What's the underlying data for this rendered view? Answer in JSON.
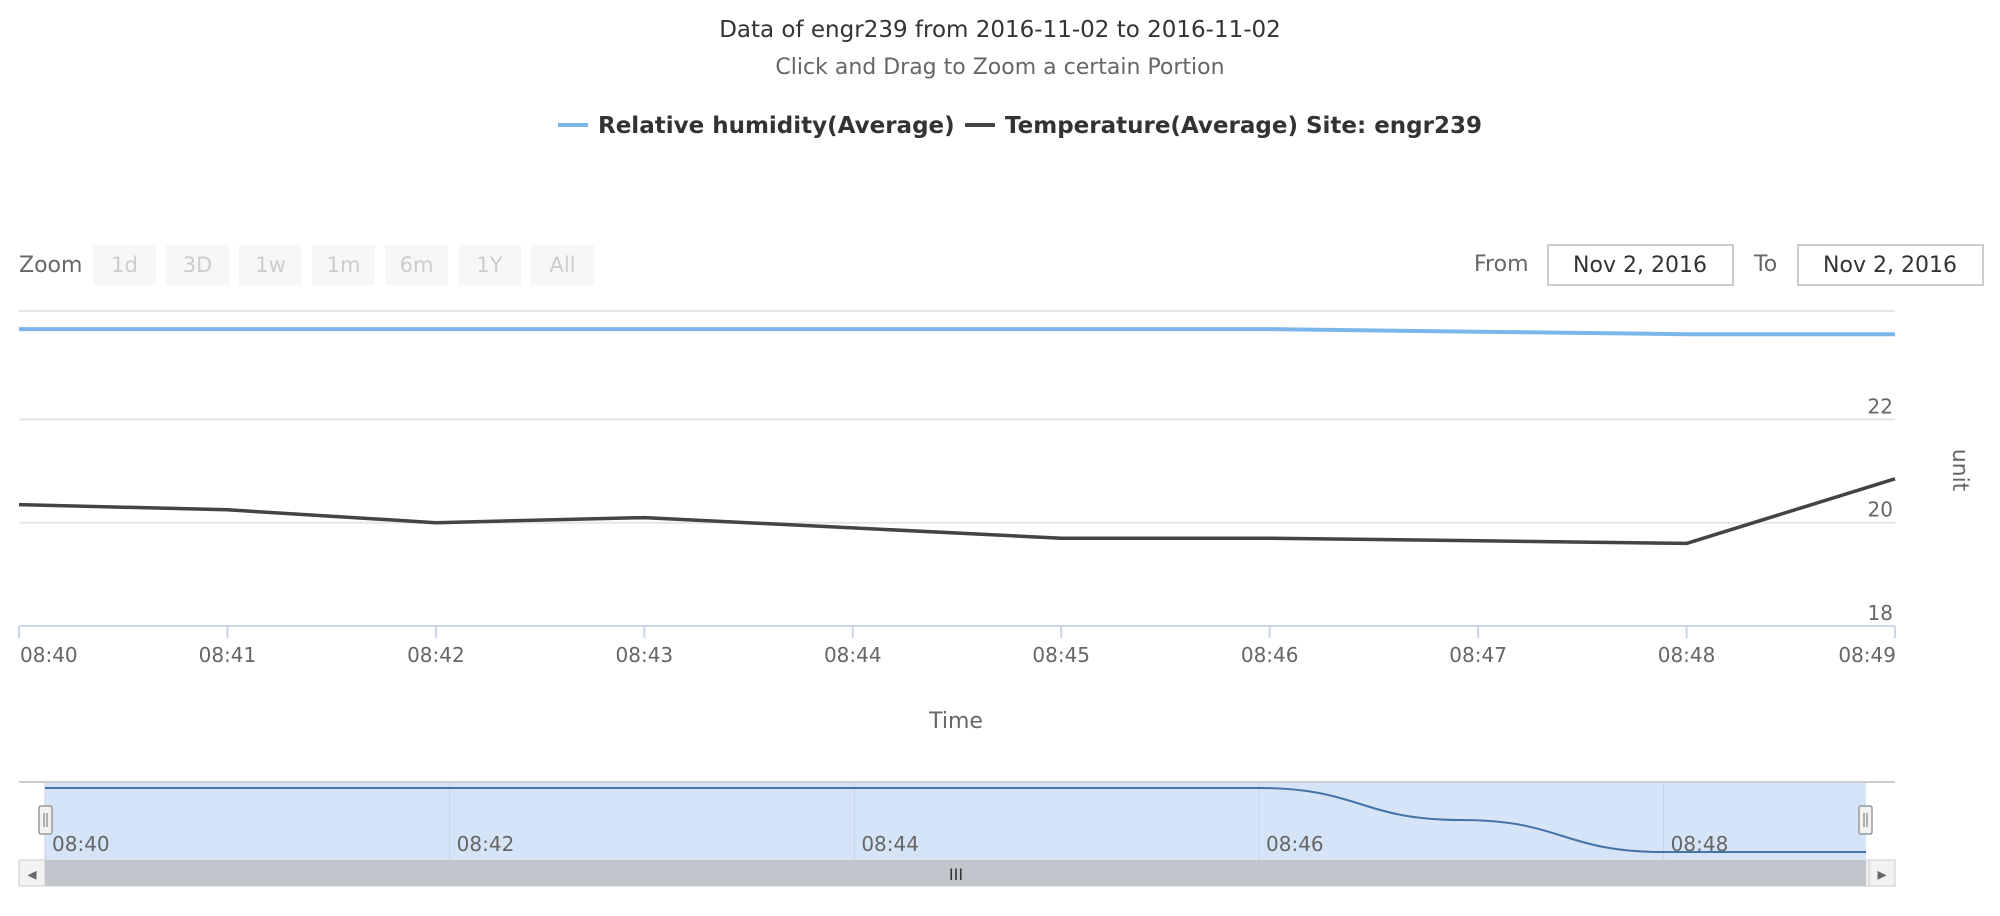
{
  "header": {
    "title": "Data of engr239 from 2016-11-02 to 2016-11-02",
    "subtitle": "Click and Drag to Zoom a certain Portion"
  },
  "range_selector": {
    "zoom_label": "Zoom",
    "buttons": [
      "1d",
      "3D",
      "1w",
      "1m",
      "6m",
      "1Y",
      "All"
    ],
    "from_label": "From",
    "from_value": "Nov 2, 2016",
    "to_label": "To",
    "to_value": "Nov 2, 2016"
  },
  "colors": {
    "humidity": "#7cb5ec",
    "temperature": "#434348",
    "grid": "#e6e6e6",
    "navigator_fill": "#d5e4f6",
    "scrollbar": "#c1c6cc"
  },
  "navigator": {
    "ticks": [
      "08:40",
      "08:42",
      "08:44",
      "08:46",
      "08:48"
    ],
    "scrollbar_grip": "III",
    "left_arrow": "◂",
    "right_arrow": "▸"
  },
  "chart_data": {
    "type": "line",
    "xlabel": "Time",
    "ylabel": "unit",
    "x": [
      "08:40",
      "08:41",
      "08:42",
      "08:43",
      "08:44",
      "08:45",
      "08:46",
      "08:47",
      "08:48",
      "08:49"
    ],
    "ylim": [
      18,
      24.1
    ],
    "yticks": [
      18,
      20,
      22
    ],
    "grid": true,
    "legend_position": "top-center",
    "series": [
      {
        "name": "Relative humidity(Average)",
        "color": "#7cb5ec",
        "values": [
          23.75,
          23.75,
          23.75,
          23.75,
          23.75,
          23.75,
          23.75,
          23.7,
          23.65,
          23.65
        ]
      },
      {
        "name": "Temperature(Average) Site: engr239",
        "color": "#434348",
        "values": [
          20.35,
          20.25,
          20.0,
          20.1,
          19.9,
          19.7,
          19.7,
          19.65,
          19.6,
          20.85
        ]
      }
    ]
  }
}
